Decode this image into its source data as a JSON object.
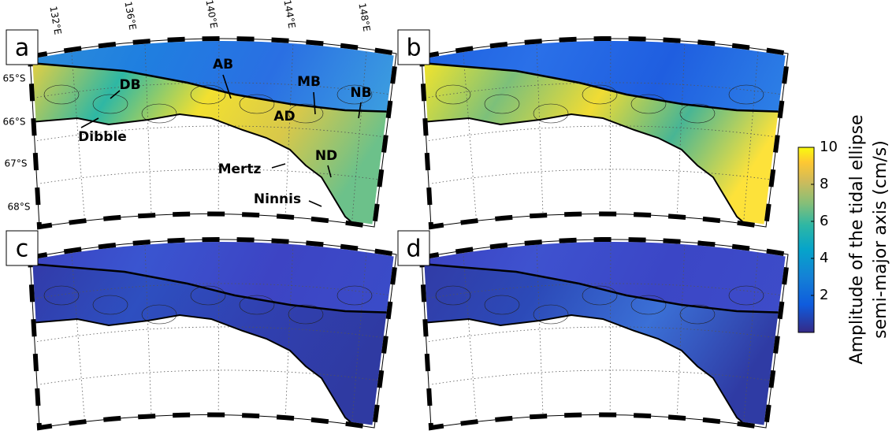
{
  "panels": [
    {
      "label": "a"
    },
    {
      "label": "b"
    },
    {
      "label": "c"
    },
    {
      "label": "d"
    }
  ],
  "lon_labels": [
    "132°E",
    "136°E",
    "140°E",
    "144°E",
    "148°E"
  ],
  "lat_labels": [
    "65°S",
    "66°S",
    "67°S",
    "68°S"
  ],
  "annotations": [
    "DB",
    "AB",
    "MB",
    "NB",
    "AD",
    "ND",
    "Dibble",
    "Mertz",
    "Ninnis"
  ],
  "colorbar": {
    "label": [
      "Amplitude of the tidal ellipse",
      "semi-major axis (cm/s)"
    ],
    "lim": [
      0,
      10
    ],
    "ticks": [
      2,
      4,
      6,
      8,
      10
    ]
  }
}
